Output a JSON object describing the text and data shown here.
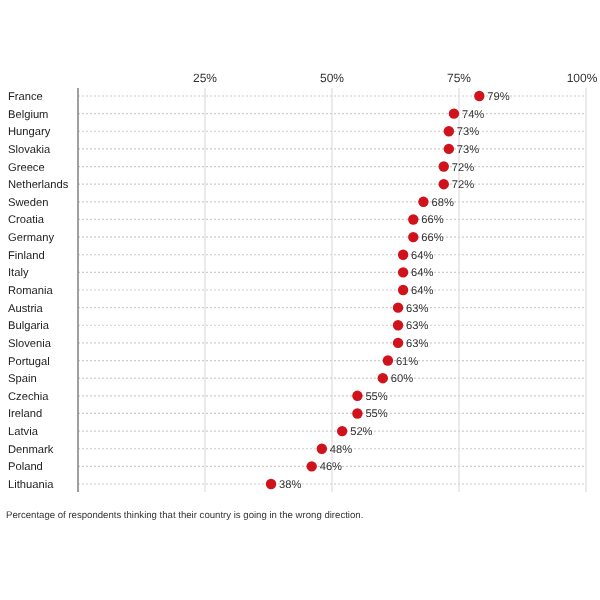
{
  "chart_data": {
    "type": "scatter",
    "orientation": "horizontal",
    "categories": [
      "France",
      "Belgium",
      "Hungary",
      "Slovakia",
      "Greece",
      "Netherlands",
      "Sweden",
      "Croatia",
      "Germany",
      "Finland",
      "Italy",
      "Romania",
      "Austria",
      "Bulgaria",
      "Slovenia",
      "Portugal",
      "Spain",
      "Czechia",
      "Ireland",
      "Latvia",
      "Denmark",
      "Poland",
      "Lithuania"
    ],
    "values": [
      79,
      74,
      73,
      73,
      72,
      72,
      68,
      66,
      66,
      64,
      64,
      64,
      63,
      63,
      63,
      61,
      60,
      55,
      55,
      52,
      48,
      46,
      38
    ],
    "value_labels": [
      "79%",
      "74%",
      "73%",
      "73%",
      "72%",
      "72%",
      "68%",
      "66%",
      "66%",
      "64%",
      "64%",
      "64%",
      "63%",
      "63%",
      "63%",
      "61%",
      "60%",
      "55%",
      "55%",
      "52%",
      "48%",
      "46%",
      "38%"
    ],
    "color": "#d0121b",
    "marker": "circle",
    "grid": true,
    "xlim": [
      0,
      100
    ],
    "xticks": [
      {
        "value": 0,
        "label": null
      },
      {
        "value": 25,
        "label": "25%"
      },
      {
        "value": 50,
        "label": "50%"
      },
      {
        "value": 75,
        "label": "75%"
      },
      {
        "value": 100,
        "label": "100%"
      }
    ],
    "annotations": [
      "Percentage of respondents thinking that their country is going in the wrong direction."
    ]
  }
}
